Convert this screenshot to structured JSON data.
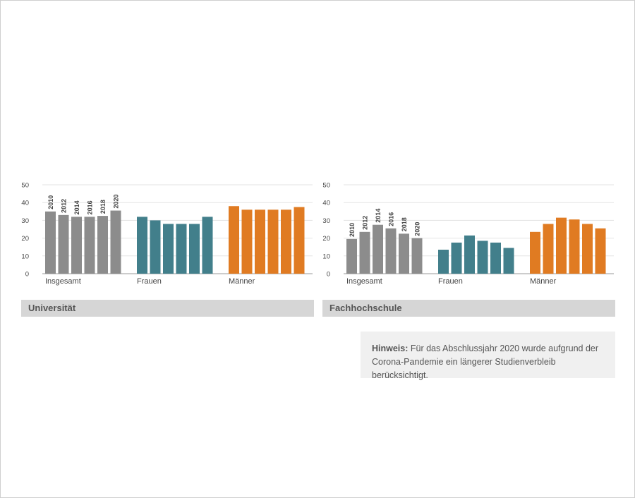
{
  "colors": {
    "insgesamt": "#8c8c8c",
    "frauen": "#427f8b",
    "maenner": "#e07b22",
    "grid": "#e3e3e3",
    "axis": "#999999",
    "text": "#444444"
  },
  "chart_data": [
    {
      "type": "bar",
      "title": "Universität",
      "groups": [
        "Insgesamt",
        "Frauen",
        "Männer"
      ],
      "years": [
        "2010",
        "2012",
        "2014",
        "2016",
        "2018",
        "2020"
      ],
      "series": [
        {
          "name": "Insgesamt",
          "values": [
            35,
            33,
            32,
            32,
            32.5,
            35.5
          ]
        },
        {
          "name": "Frauen",
          "values": [
            32,
            30,
            28,
            28,
            28,
            32
          ]
        },
        {
          "name": "Männer",
          "values": [
            38,
            36,
            36,
            36,
            36,
            37.5
          ]
        }
      ],
      "yticks": [
        0,
        10,
        20,
        30,
        40,
        50
      ],
      "ylim": [
        0,
        50
      ],
      "grid": true
    },
    {
      "type": "bar",
      "title": "Fachhochschule",
      "groups": [
        "Insgesamt",
        "Frauen",
        "Männer"
      ],
      "years": [
        "2010",
        "2012",
        "2014",
        "2016",
        "2018",
        "2020"
      ],
      "series": [
        {
          "name": "Insgesamt",
          "values": [
            19.5,
            23.5,
            27.5,
            25.5,
            22.5,
            20
          ]
        },
        {
          "name": "Frauen",
          "values": [
            13.5,
            17.5,
            21.5,
            18.5,
            17.5,
            14.5
          ]
        },
        {
          "name": "Männer",
          "values": [
            23.5,
            28,
            31.5,
            30.5,
            28,
            25.5
          ]
        }
      ],
      "yticks": [
        0,
        10,
        20,
        30,
        40,
        50
      ],
      "ylim": [
        0,
        50
      ],
      "grid": true
    }
  ],
  "note": {
    "bold": "Hinweis:",
    "line1": " Für das Abschlussjahr 2020 wurde aufgrund der",
    "line2": "Corona-Pandemie ein längerer Studienverbleib berücksichtigt."
  }
}
